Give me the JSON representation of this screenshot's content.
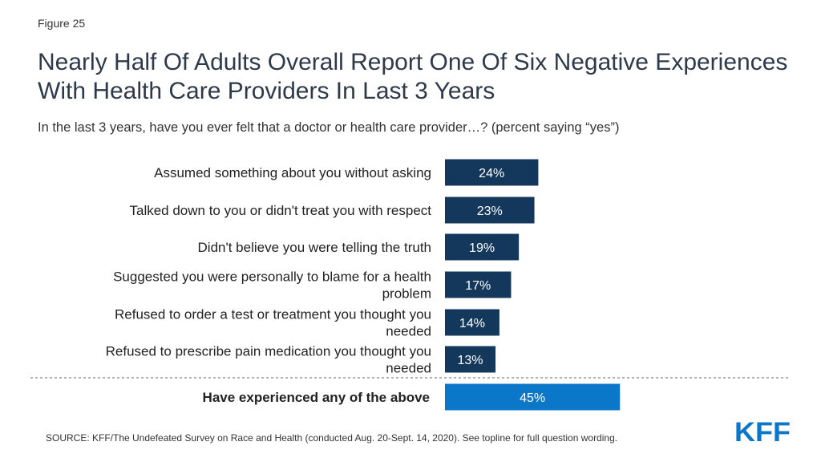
{
  "figure_label": "Figure 25",
  "title": "Nearly Half Of Adults Overall Report One Of Six Negative Experiences With Health Care Providers In Last 3 Years",
  "subtitle": "In the last 3 years, have you ever felt that a doctor or health care provider…? (percent saying “yes”)",
  "source": "SOURCE: KFF/The Undefeated Survey on Race and Health (conducted Aug. 20-Sept. 14, 2020). See topline for full question wording.",
  "logo_text": "KFF",
  "colors": {
    "bar": "#14385c",
    "highlight": "#0b77c8",
    "logo": "#0b77c8"
  },
  "chart_data": {
    "type": "bar",
    "orientation": "horizontal",
    "categories": [
      [
        "Assumed something about you without asking"
      ],
      [
        "Talked down to you or didn't treat you with respect"
      ],
      [
        "Didn't believe you were telling the truth"
      ],
      [
        "Suggested you were personally to blame for a health",
        "problem"
      ],
      [
        "Refused to order a test or treatment you thought you",
        "needed"
      ],
      [
        "Refused to prescribe pain medication you thought you",
        "needed"
      ]
    ],
    "values": [
      24,
      23,
      19,
      17,
      14,
      13
    ],
    "value_labels": [
      "24%",
      "23%",
      "19%",
      "17%",
      "14%",
      "13%"
    ],
    "summary": {
      "category": "Have experienced any of the above",
      "value": 45,
      "value_label": "45%"
    },
    "unit": "%"
  }
}
